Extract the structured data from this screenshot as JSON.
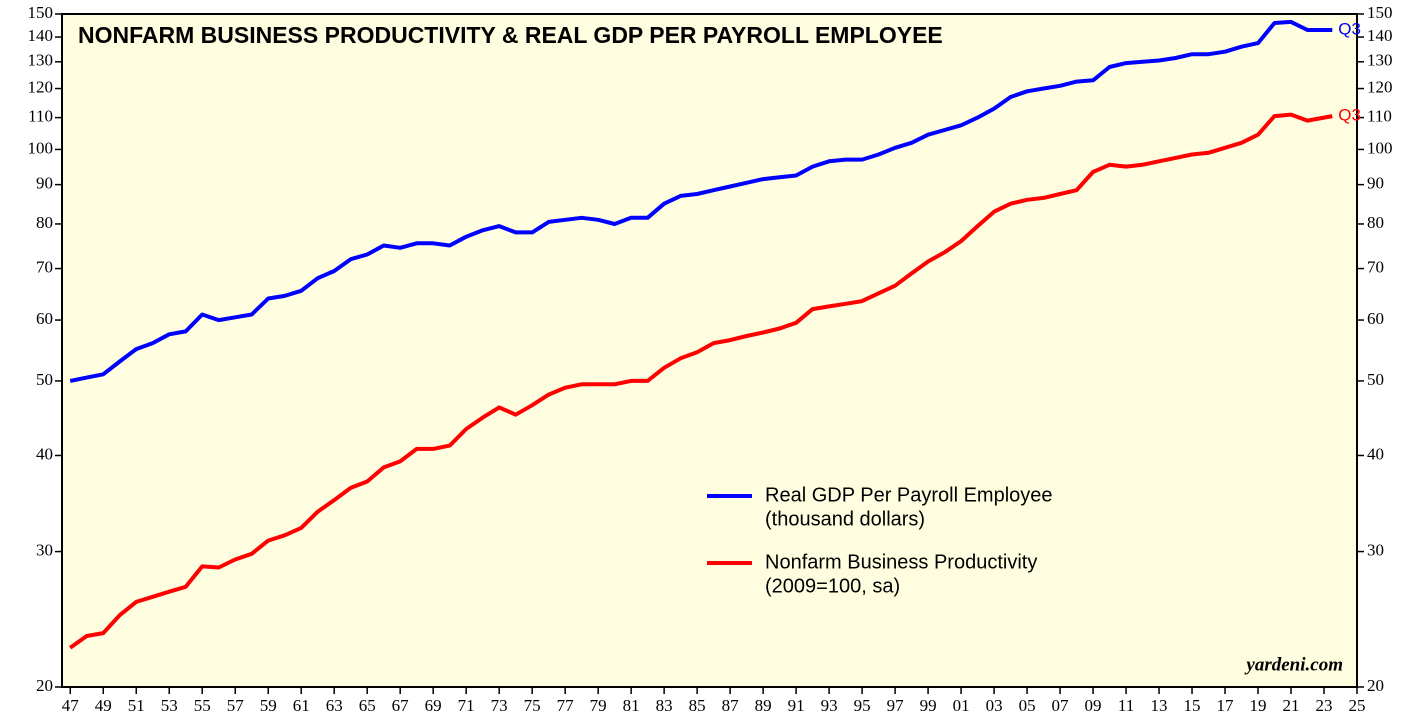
{
  "chart_data": {
    "type": "line",
    "title": "NONFARM BUSINESS PRODUCTIVITY & REAL GDP PER PAYROLL EMPLOYEE",
    "annotation": "yardeni.com",
    "x": [
      1947,
      1948,
      1949,
      1950,
      1951,
      1952,
      1953,
      1954,
      1955,
      1956,
      1957,
      1958,
      1959,
      1960,
      1961,
      1962,
      1963,
      1964,
      1965,
      1966,
      1967,
      1968,
      1969,
      1970,
      1971,
      1972,
      1973,
      1974,
      1975,
      1976,
      1977,
      1978,
      1979,
      1980,
      1981,
      1982,
      1983,
      1984,
      1985,
      1986,
      1987,
      1988,
      1989,
      1990,
      1991,
      1992,
      1993,
      1994,
      1995,
      1996,
      1997,
      1998,
      1999,
      2000,
      2001,
      2002,
      2003,
      2004,
      2005,
      2006,
      2007,
      2008,
      2009,
      2010,
      2011,
      2012,
      2013,
      2014,
      2015,
      2016,
      2017,
      2018,
      2019,
      2020,
      2021,
      2022,
      2023.5
    ],
    "series": [
      {
        "name": "Real GDP Per Payroll Employee",
        "legend_note": "(thousand dollars)",
        "end_label": "Q3",
        "color": "#0000ff",
        "values": [
          50,
          50.5,
          51,
          53,
          55,
          56,
          57.5,
          58,
          61,
          60,
          60.5,
          61,
          64,
          64.5,
          65.5,
          68,
          69.5,
          72,
          73,
          75,
          74.5,
          75.5,
          75.5,
          75,
          77,
          78.5,
          79.5,
          78,
          78,
          80.5,
          81,
          81.5,
          81,
          80,
          81.5,
          81.5,
          85,
          87,
          87.5,
          88.5,
          89.5,
          90.5,
          91.5,
          92,
          92.5,
          95,
          96.5,
          97,
          97,
          98.5,
          100.5,
          102,
          104.5,
          106,
          107.5,
          110,
          113,
          117,
          119,
          120,
          121,
          122.5,
          123,
          128,
          129.5,
          130,
          130.5,
          131.5,
          133,
          133,
          134,
          136,
          137.5,
          146,
          146.5,
          143,
          143
        ]
      },
      {
        "name": "Nonfarm Business Productivity",
        "legend_note": "(2009=100, sa)",
        "end_label": "Q3",
        "color": "#ff0000",
        "values": [
          22.5,
          23.3,
          23.5,
          24.8,
          25.8,
          26.2,
          26.6,
          27,
          28.7,
          28.6,
          29.3,
          29.8,
          31,
          31.5,
          32.2,
          33.8,
          35,
          36.3,
          37,
          38.6,
          39.3,
          40.8,
          40.8,
          41.2,
          43.3,
          44.8,
          46.2,
          45.2,
          46.5,
          48,
          49,
          49.5,
          49.5,
          49.5,
          50,
          50,
          52,
          53.5,
          54.5,
          56,
          56.5,
          57.2,
          57.8,
          58.5,
          59.5,
          62,
          62.5,
          63,
          63.5,
          65,
          66.5,
          69,
          71.5,
          73.5,
          76,
          79.5,
          83,
          85,
          86,
          86.5,
          87.5,
          88.5,
          93.5,
          95.5,
          95,
          95.5,
          96.5,
          97.5,
          98.5,
          99,
          100.5,
          102,
          104.5,
          110.5,
          111,
          109,
          110.5
        ]
      }
    ],
    "log_scale": true,
    "xlim": [
      1946.5,
      2025
    ],
    "xticks": [
      {
        "value": 1947,
        "label": "47"
      },
      {
        "value": 1949,
        "label": "49"
      },
      {
        "value": 1951,
        "label": "51"
      },
      {
        "value": 1953,
        "label": "53"
      },
      {
        "value": 1955,
        "label": "55"
      },
      {
        "value": 1957,
        "label": "57"
      },
      {
        "value": 1959,
        "label": "59"
      },
      {
        "value": 1961,
        "label": "61"
      },
      {
        "value": 1963,
        "label": "63"
      },
      {
        "value": 1965,
        "label": "65"
      },
      {
        "value": 1967,
        "label": "67"
      },
      {
        "value": 1969,
        "label": "69"
      },
      {
        "value": 1971,
        "label": "71"
      },
      {
        "value": 1973,
        "label": "73"
      },
      {
        "value": 1975,
        "label": "75"
      },
      {
        "value": 1977,
        "label": "77"
      },
      {
        "value": 1979,
        "label": "79"
      },
      {
        "value": 1981,
        "label": "81"
      },
      {
        "value": 1983,
        "label": "83"
      },
      {
        "value": 1985,
        "label": "85"
      },
      {
        "value": 1987,
        "label": "87"
      },
      {
        "value": 1989,
        "label": "89"
      },
      {
        "value": 1991,
        "label": "91"
      },
      {
        "value": 1993,
        "label": "93"
      },
      {
        "value": 1995,
        "label": "95"
      },
      {
        "value": 1997,
        "label": "97"
      },
      {
        "value": 1999,
        "label": "99"
      },
      {
        "value": 2001,
        "label": "01"
      },
      {
        "value": 2003,
        "label": "03"
      },
      {
        "value": 2005,
        "label": "05"
      },
      {
        "value": 2007,
        "label": "07"
      },
      {
        "value": 2009,
        "label": "09"
      },
      {
        "value": 2011,
        "label": "11"
      },
      {
        "value": 2013,
        "label": "13"
      },
      {
        "value": 2015,
        "label": "15"
      },
      {
        "value": 2017,
        "label": "17"
      },
      {
        "value": 2019,
        "label": "19"
      },
      {
        "value": 2021,
        "label": "21"
      },
      {
        "value": 2023,
        "label": "23"
      },
      {
        "value": 2025,
        "label": "25"
      }
    ],
    "ylim": [
      20,
      150
    ],
    "yticks": [
      20,
      30,
      40,
      50,
      60,
      70,
      80,
      90,
      100,
      110,
      120,
      130,
      140,
      150
    ],
    "background": "#fffde0"
  }
}
